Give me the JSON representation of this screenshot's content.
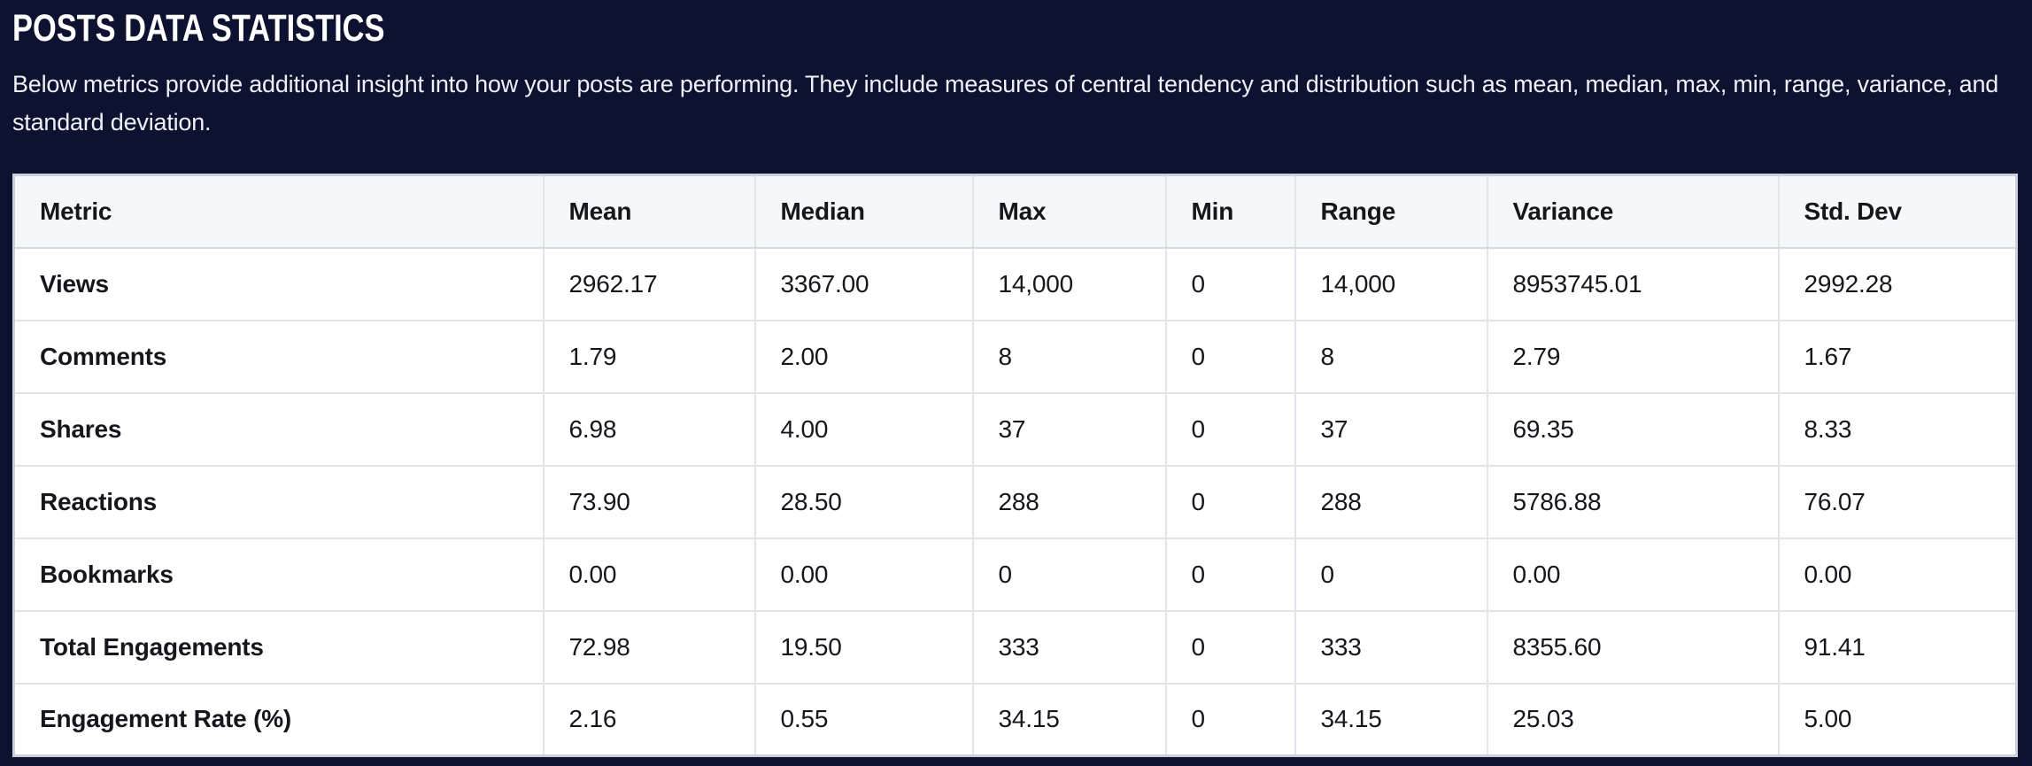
{
  "header": {
    "title": "POSTS DATA STATISTICS",
    "description": "Below metrics provide additional insight into how your posts are performing. They include measures of central tendency and distribution such as mean, median, max, min, range, variance, and standard deviation."
  },
  "colors": {
    "page_background": "#0d1231",
    "table_header_background": "#f6f7fa",
    "table_row_background": "#ffffff",
    "cell_border": "#e2e4e9",
    "outer_border": "#ccd0d8",
    "table_text": "#15171c",
    "page_text": "#eef0f6"
  },
  "table": {
    "columns": [
      "Metric",
      "Mean",
      "Median",
      "Max",
      "Min",
      "Range",
      "Variance",
      "Std. Dev"
    ],
    "rows": [
      {
        "cells": [
          "Views",
          "2962.17",
          "3367.00",
          "14,000",
          "0",
          "14,000",
          "8953745.01",
          "2992.28"
        ]
      },
      {
        "cells": [
          "Comments",
          "1.79",
          "2.00",
          "8",
          "0",
          "8",
          "2.79",
          "1.67"
        ]
      },
      {
        "cells": [
          "Shares",
          "6.98",
          "4.00",
          "37",
          "0",
          "37",
          "69.35",
          "8.33"
        ]
      },
      {
        "cells": [
          "Reactions",
          "73.90",
          "28.50",
          "288",
          "0",
          "288",
          "5786.88",
          "76.07"
        ]
      },
      {
        "cells": [
          "Bookmarks",
          "0.00",
          "0.00",
          "0",
          "0",
          "0",
          "0.00",
          "0.00"
        ]
      },
      {
        "cells": [
          "Total Engagements",
          "72.98",
          "19.50",
          "333",
          "0",
          "333",
          "8355.60",
          "91.41"
        ]
      },
      {
        "cells": [
          "Engagement Rate (%)",
          "2.16",
          "0.55",
          "34.15",
          "0",
          "34.15",
          "25.03",
          "5.00"
        ]
      }
    ]
  }
}
